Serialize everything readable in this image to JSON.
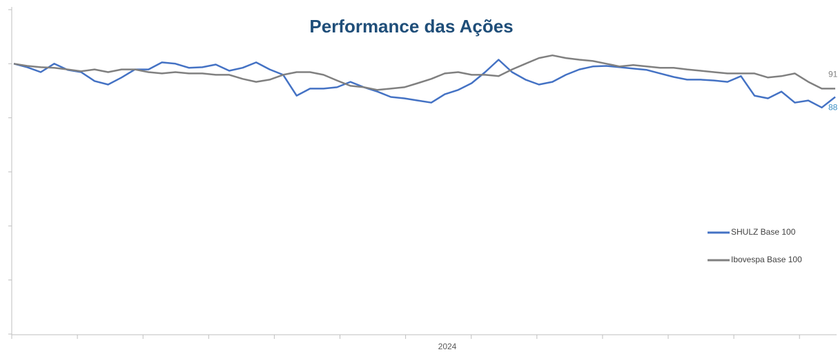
{
  "chart_data": {
    "type": "line",
    "title": "Performance das Ações",
    "x_label": "2024",
    "ylim": [
      0,
      120
    ],
    "yticks": [
      0,
      20,
      40,
      60,
      80,
      100,
      120
    ],
    "legend": "right",
    "series": [
      {
        "name": "SHULZ Base 100",
        "color": "#4472c4",
        "values": [
          100,
          98.7,
          96.9,
          100,
          97.7,
          96.9,
          93.6,
          92.3,
          94.9,
          97.9,
          97.9,
          100.5,
          100,
          98.5,
          98.7,
          99.7,
          97.4,
          98.5,
          100.5,
          97.9,
          95.9,
          88.2,
          90.8,
          90.8,
          91.3,
          93.3,
          91.3,
          89.7,
          87.7,
          87.2,
          86.4,
          85.6,
          88.7,
          90.3,
          92.8,
          96.9,
          101.5,
          96.9,
          94.1,
          92.3,
          93.3,
          95.9,
          97.9,
          99,
          99.2,
          98.7,
          98.2,
          97.7,
          96.4,
          95.1,
          94.1,
          94.1,
          93.8,
          93.3,
          95.4,
          88.2,
          87.2,
          89.7,
          85.6,
          86.4,
          83.8,
          87.7
        ],
        "value_labels": [
          null,
          null,
          null,
          null,
          null,
          null,
          null,
          null,
          null,
          null,
          null,
          null,
          null,
          null,
          null,
          null,
          null,
          null,
          null,
          null,
          null,
          null,
          null,
          null,
          null,
          null,
          null,
          null,
          null,
          null,
          null,
          null,
          null,
          null,
          null,
          null,
          null,
          null,
          null,
          null,
          null,
          null,
          null,
          null,
          null,
          null,
          null,
          null,
          null,
          null,
          null,
          null,
          null,
          null,
          null,
          null,
          null,
          null,
          null,
          null,
          null,
          "88"
        ],
        "label_color": "#3b8fc6"
      },
      {
        "name": "Ibovespa Base 100",
        "color": "#808080",
        "values": [
          100,
          99.2,
          98.7,
          98.5,
          97.9,
          97.2,
          97.9,
          96.9,
          97.9,
          97.9,
          96.9,
          96.4,
          96.9,
          96.4,
          96.4,
          95.9,
          95.9,
          94.4,
          93.3,
          94.1,
          95.9,
          96.9,
          96.9,
          95.9,
          93.8,
          91.8,
          91.3,
          90.3,
          90.8,
          91.3,
          92.8,
          94.4,
          96.4,
          96.9,
          95.9,
          95.9,
          95.4,
          97.9,
          100,
          102.1,
          103.1,
          102.1,
          101.5,
          101,
          100,
          99,
          99.5,
          99,
          98.5,
          98.5,
          97.9,
          97.4,
          96.9,
          96.4,
          96.4,
          96.4,
          94.9,
          95.4,
          96.4,
          93.3,
          90.8,
          90.8
        ],
        "value_labels": [
          null,
          null,
          null,
          null,
          null,
          null,
          null,
          null,
          null,
          null,
          null,
          null,
          null,
          null,
          null,
          null,
          null,
          null,
          null,
          null,
          null,
          null,
          null,
          null,
          null,
          null,
          null,
          null,
          null,
          null,
          null,
          null,
          null,
          null,
          null,
          null,
          null,
          null,
          null,
          null,
          null,
          null,
          null,
          null,
          null,
          null,
          null,
          null,
          null,
          null,
          null,
          null,
          null,
          null,
          null,
          null,
          null,
          null,
          null,
          null,
          null,
          "91"
        ],
        "label_color": "#7f7f7f"
      }
    ]
  }
}
